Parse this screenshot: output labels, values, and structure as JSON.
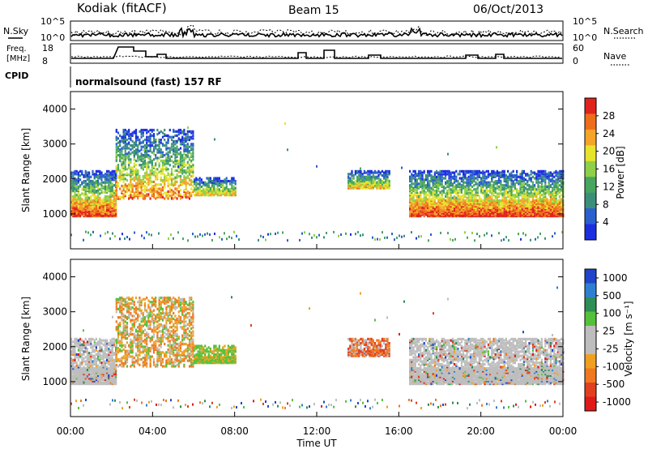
{
  "header": {
    "station": "Kodiak (fitACF)",
    "beam": "Beam 15",
    "date": "06/Oct/2013"
  },
  "sky_panel": {
    "left_label": "N.Sky",
    "right_label": "N.Search",
    "left_ticks": [
      "10^5",
      "10^0"
    ],
    "right_ticks": [
      "10^5",
      "10^0"
    ]
  },
  "freq_panel": {
    "left_label_line1": "Freq.",
    "left_label_line2": "[MHz]",
    "right_label": "Nave",
    "left_ticks": [
      "18",
      "8"
    ],
    "right_ticks": [
      "60",
      "0"
    ]
  },
  "cpid_panel": {
    "label": "CPID",
    "text": "normalsound (fast) 157 RF"
  },
  "colors": {
    "background": "#ffffff",
    "power_scale": [
      "#1c2ee0",
      "#2a5fd0",
      "#3b8f7a",
      "#47a560",
      "#8fd048",
      "#e7e42c",
      "#f4a428",
      "#ee6d1b",
      "#e0231d"
    ],
    "velocity_scale": [
      "#2145c8",
      "#2f7fd0",
      "#2e8e55",
      "#55c13a",
      "#bdbdbd",
      "#bdbdbd",
      "#f0a020",
      "#f07820",
      "#e04020",
      "#e01a1a"
    ]
  },
  "chart_data": [
    {
      "type": "heatmap",
      "title": "",
      "panel": "power",
      "xlabel": "",
      "ylabel": "Slant Range [km]",
      "xlim": [
        "00:00",
        "24:00"
      ],
      "ylim": [
        0,
        4500
      ],
      "y_ticks": [
        "1000",
        "2000",
        "3000",
        "4000"
      ],
      "colorbar": {
        "label": "Power [dB]",
        "ticks": [
          "4",
          "8",
          "12",
          "16",
          "20",
          "24",
          "28"
        ],
        "range": [
          0,
          30
        ]
      },
      "echo_regions": [
        {
          "start_hour": 0.0,
          "end_hour": 2.2,
          "min_range_km": 900,
          "max_range_km": 2200,
          "peak_db": 28
        },
        {
          "start_hour": 2.2,
          "end_hour": 6.0,
          "min_range_km": 1400,
          "max_range_km": 3400,
          "peak_db": 24
        },
        {
          "start_hour": 6.0,
          "end_hour": 8.0,
          "min_range_km": 1500,
          "max_range_km": 2000,
          "peak_db": 20
        },
        {
          "start_hour": 13.5,
          "end_hour": 15.5,
          "min_range_km": 1700,
          "max_range_km": 2200,
          "peak_db": 20
        },
        {
          "start_hour": 16.5,
          "end_hour": 24.0,
          "min_range_km": 900,
          "max_range_km": 2200,
          "peak_db": 28
        }
      ]
    },
    {
      "type": "heatmap",
      "title": "",
      "panel": "velocity",
      "xlabel": "Time UT",
      "ylabel": "Slant Range [km]",
      "xlim": [
        "00:00",
        "24:00"
      ],
      "ylim": [
        0,
        4500
      ],
      "x_ticks": [
        "00:00",
        "04:00",
        "08:00",
        "12:00",
        "16:00",
        "20:00",
        "00:00"
      ],
      "y_ticks": [
        "1000",
        "2000",
        "3000",
        "4000"
      ],
      "colorbar": {
        "label": "Velocity [m s⁻¹]",
        "ticks": [
          "1000",
          "500",
          "100",
          "25",
          "-25",
          "-100",
          "-500",
          "-1000"
        ],
        "range": [
          -1000,
          1000
        ]
      },
      "echo_regions": [
        {
          "start_hour": 0.0,
          "end_hour": 2.2,
          "min_range_km": 900,
          "max_range_km": 2200,
          "dominant_velocity": "±25"
        },
        {
          "start_hour": 2.2,
          "end_hour": 6.0,
          "min_range_km": 1400,
          "max_range_km": 3400,
          "dominant_velocity": "-100"
        },
        {
          "start_hour": 6.0,
          "end_hour": 8.0,
          "min_range_km": 1500,
          "max_range_km": 2000,
          "dominant_velocity": "100"
        },
        {
          "start_hour": 13.5,
          "end_hour": 15.5,
          "min_range_km": 1700,
          "max_range_km": 2200,
          "dominant_velocity": "-500"
        },
        {
          "start_hour": 16.5,
          "end_hour": 24.0,
          "min_range_km": 900,
          "max_range_km": 2200,
          "dominant_velocity": "±25"
        }
      ]
    }
  ]
}
